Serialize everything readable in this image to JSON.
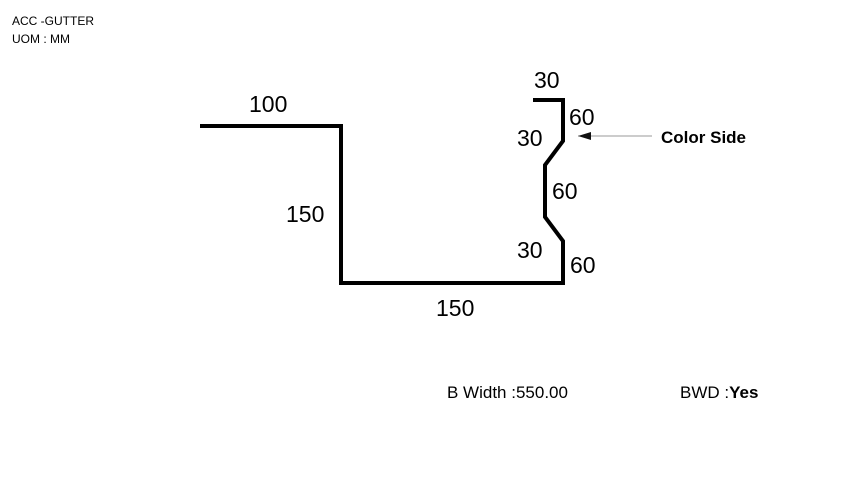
{
  "header": {
    "product": "ACC -GUTTER",
    "uom": "UOM : MM"
  },
  "profile": {
    "segments": [
      {
        "id": "top-flange",
        "label": "100"
      },
      {
        "id": "left-wall",
        "label": "150"
      },
      {
        "id": "bottom",
        "label": "150"
      },
      {
        "id": "right-lower-wall",
        "label": "60"
      },
      {
        "id": "right-lower-bend",
        "label": "30"
      },
      {
        "id": "right-middle-wall",
        "label": "60"
      },
      {
        "id": "right-upper-bend",
        "label": "30"
      },
      {
        "id": "right-upper-wall",
        "label": "60"
      },
      {
        "id": "top-hem",
        "label": "30"
      }
    ],
    "color_side_label": "Color Side",
    "stroke_color": "#000000",
    "arrow_color": "#999999"
  },
  "footer": {
    "b_width_label": "B Width :",
    "b_width_value": "550.00",
    "bwd_label": "BWD :",
    "bwd_value": "Yes"
  }
}
